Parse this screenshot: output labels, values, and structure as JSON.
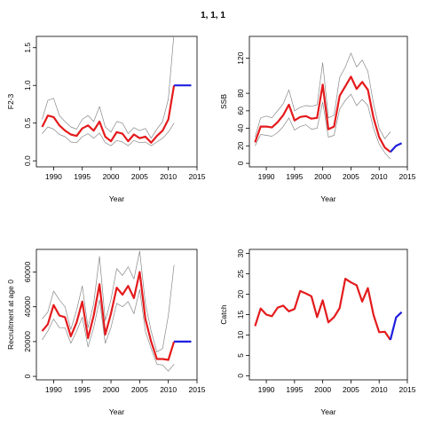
{
  "figure": {
    "title": "1, 1, 1"
  },
  "colors": {
    "central": "#e41a1c",
    "forecast": "#1f1fe0",
    "ci": "#888888"
  },
  "chart_data": [
    {
      "type": "line",
      "xlabel": "Year",
      "ylabel": "F2-3",
      "xlim": [
        1987,
        2015
      ],
      "ylim": [
        -0.08,
        1.65
      ],
      "xticks": [
        1990,
        1995,
        2000,
        2005,
        2010,
        2015
      ],
      "yticks": [
        0.0,
        0.5,
        1.0,
        1.5
      ],
      "ytick_labels": [
        "0.0",
        "0.5",
        "1.0",
        "1.5"
      ],
      "series": [
        {
          "role": "upper",
          "x": [
            1988,
            1989,
            1990,
            1991,
            1992,
            1993,
            1994,
            1995,
            1996,
            1997,
            1998,
            1999,
            2000,
            2001,
            2002,
            2003,
            2004,
            2005,
            2006,
            2007,
            2008,
            2009,
            2010,
            2011
          ],
          "values": [
            0.55,
            0.8,
            0.83,
            0.6,
            0.52,
            0.45,
            0.42,
            0.55,
            0.6,
            0.52,
            0.72,
            0.45,
            0.38,
            0.52,
            0.5,
            0.36,
            0.44,
            0.4,
            0.43,
            0.3,
            0.42,
            0.52,
            0.82,
            1.7
          ]
        },
        {
          "role": "lower",
          "x": [
            1988,
            1989,
            1990,
            1991,
            1992,
            1993,
            1994,
            1995,
            1996,
            1997,
            1998,
            1999,
            2000,
            2001,
            2002,
            2003,
            2004,
            2005,
            2006,
            2007,
            2008,
            2009,
            2010,
            2011
          ],
          "values": [
            0.36,
            0.45,
            0.42,
            0.35,
            0.32,
            0.25,
            0.24,
            0.32,
            0.36,
            0.3,
            0.37,
            0.24,
            0.2,
            0.27,
            0.25,
            0.2,
            0.27,
            0.24,
            0.25,
            0.2,
            0.25,
            0.3,
            0.38,
            0.5
          ]
        },
        {
          "role": "central",
          "x": [
            1988,
            1989,
            1990,
            1991,
            1992,
            1993,
            1994,
            1995,
            1996,
            1997,
            1998,
            1999,
            2000,
            2001,
            2002,
            2003,
            2004,
            2005,
            2006,
            2007,
            2008,
            2009,
            2010,
            2011
          ],
          "values": [
            0.45,
            0.6,
            0.58,
            0.47,
            0.4,
            0.35,
            0.33,
            0.43,
            0.47,
            0.4,
            0.52,
            0.32,
            0.26,
            0.38,
            0.36,
            0.26,
            0.35,
            0.3,
            0.32,
            0.24,
            0.33,
            0.4,
            0.55,
            1.0
          ]
        },
        {
          "role": "forecast",
          "x": [
            2011,
            2012,
            2013,
            2014
          ],
          "values": [
            1.0,
            1.0,
            1.0,
            1.0
          ]
        }
      ]
    },
    {
      "type": "line",
      "xlabel": "Year",
      "ylabel": "SSB",
      "xlim": [
        1987,
        2015
      ],
      "ylim": [
        -4,
        145
      ],
      "xticks": [
        1990,
        1995,
        2000,
        2005,
        2010,
        2015
      ],
      "yticks": [
        0,
        20,
        40,
        60,
        80,
        120
      ],
      "ytick_labels": [
        "0",
        "20",
        "40",
        "60",
        "80",
        "120"
      ],
      "series": [
        {
          "role": "upper",
          "x": [
            1988,
            1989,
            1990,
            1991,
            1992,
            1993,
            1994,
            1995,
            1996,
            1997,
            1998,
            1999,
            2000,
            2001,
            2002,
            2003,
            2004,
            2005,
            2006,
            2007,
            2008,
            2009,
            2010,
            2011,
            2012
          ],
          "values": [
            30,
            52,
            54,
            52,
            60,
            68,
            84,
            60,
            64,
            66,
            65,
            67,
            115,
            52,
            55,
            98,
            110,
            126,
            110,
            118,
            105,
            68,
            40,
            28,
            36
          ]
        },
        {
          "role": "lower",
          "x": [
            1988,
            1989,
            1990,
            1991,
            1992,
            1993,
            1994,
            1995,
            1996,
            1997,
            1998,
            1999,
            2000,
            2001,
            2002,
            2003,
            2004,
            2005,
            2006,
            2007,
            2008,
            2009,
            2010,
            2011,
            2012
          ],
          "values": [
            20,
            33,
            32,
            31,
            35,
            42,
            52,
            38,
            42,
            44,
            39,
            40,
            70,
            30,
            32,
            62,
            72,
            79,
            66,
            73,
            66,
            40,
            22,
            12,
            5
          ]
        },
        {
          "role": "central",
          "x": [
            1988,
            1989,
            1990,
            1991,
            1992,
            1993,
            1994,
            1995,
            1996,
            1997,
            1998,
            1999,
            2000,
            2001,
            2002,
            2003,
            2004,
            2005,
            2006,
            2007,
            2008,
            2009,
            2010,
            2011,
            2012
          ],
          "values": [
            24,
            42,
            42,
            41,
            47,
            55,
            67,
            49,
            53,
            54,
            51,
            52,
            90,
            39,
            42,
            77,
            88,
            99,
            85,
            93,
            84,
            52,
            30,
            18,
            13
          ]
        },
        {
          "role": "forecast",
          "x": [
            2012,
            2013,
            2014
          ],
          "values": [
            13,
            20,
            23
          ]
        }
      ]
    },
    {
      "type": "line",
      "xlabel": "Year",
      "ylabel": "Recruitment at age 0",
      "xlim": [
        1987,
        2015
      ],
      "ylim": [
        -2000,
        73000
      ],
      "xticks": [
        1990,
        1995,
        2000,
        2005,
        2010,
        2015
      ],
      "yticks": [
        0,
        20000,
        40000,
        60000
      ],
      "ytick_labels": [
        "0",
        "20000",
        "40000",
        "60000"
      ],
      "series": [
        {
          "role": "upper",
          "x": [
            1988,
            1989,
            1990,
            1991,
            1992,
            1993,
            1994,
            1995,
            1996,
            1997,
            1998,
            1999,
            2000,
            2001,
            2002,
            2003,
            2004,
            2005,
            2006,
            2007,
            2008,
            2009,
            2010,
            2011
          ],
          "values": [
            33000,
            37000,
            49000,
            44000,
            40000,
            27000,
            38000,
            52000,
            28000,
            42000,
            69000,
            32000,
            44000,
            62000,
            58000,
            63000,
            56000,
            72000,
            42000,
            26000,
            14000,
            16000,
            35000,
            64000
          ]
        },
        {
          "role": "lower",
          "x": [
            1988,
            1989,
            1990,
            1991,
            1992,
            1993,
            1994,
            1995,
            1996,
            1997,
            1998,
            1999,
            2000,
            2001,
            2002,
            2003,
            2004,
            2005,
            2006,
            2007,
            2008,
            2009,
            2010,
            2011
          ],
          "values": [
            21000,
            26000,
            33000,
            28000,
            28000,
            19000,
            26000,
            34000,
            17000,
            28000,
            44000,
            19000,
            28000,
            42000,
            40000,
            43000,
            36000,
            50000,
            26000,
            16000,
            7000,
            6500,
            3000,
            7000
          ]
        },
        {
          "role": "central",
          "x": [
            1988,
            1989,
            1990,
            1991,
            1992,
            1993,
            1994,
            1995,
            1996,
            1997,
            1998,
            1999,
            2000,
            2001,
            2002,
            2003,
            2004,
            2005,
            2006,
            2007,
            2008,
            2009,
            2010,
            2011
          ],
          "values": [
            26000,
            30000,
            41000,
            35000,
            34000,
            23000,
            31000,
            43000,
            22000,
            35000,
            53000,
            24000,
            36000,
            51000,
            47000,
            52000,
            45000,
            60000,
            33000,
            20000,
            10000,
            10000,
            9500,
            20000
          ]
        },
        {
          "role": "forecast",
          "x": [
            2011,
            2012,
            2013,
            2014
          ],
          "values": [
            20000,
            20000,
            20000,
            20000
          ]
        }
      ]
    },
    {
      "type": "line",
      "xlabel": "Year",
      "ylabel": "Catch",
      "xlim": [
        1987,
        2015
      ],
      "ylim": [
        -1,
        31
      ],
      "xticks": [
        1990,
        1995,
        2000,
        2005,
        2010,
        2015
      ],
      "yticks": [
        0,
        5,
        10,
        15,
        20,
        25,
        30
      ],
      "ytick_labels": [
        "0",
        "5",
        "10",
        "15",
        "20",
        "25",
        "30"
      ],
      "series": [
        {
          "role": "central",
          "x": [
            1988,
            1989,
            1990,
            1991,
            1992,
            1993,
            1994,
            1995,
            1996,
            1997,
            1998,
            1999,
            2000,
            2001,
            2002,
            2003,
            2004,
            2005,
            2006,
            2007,
            2008,
            2009,
            2010,
            2011,
            2012
          ],
          "values": [
            12.2,
            16.5,
            15.0,
            14.6,
            16.7,
            17.2,
            15.8,
            16.4,
            20.8,
            20.2,
            19.5,
            14.4,
            18.5,
            13.1,
            14.4,
            16.6,
            23.8,
            22.9,
            22.2,
            18.2,
            21.5,
            14.9,
            10.7,
            10.8,
            8.8
          ]
        },
        {
          "role": "forecast",
          "x": [
            2012,
            2013,
            2014
          ],
          "values": [
            8.8,
            14.3,
            15.6
          ]
        }
      ]
    }
  ]
}
